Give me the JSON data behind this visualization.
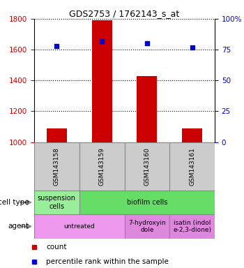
{
  "title": "GDS2753 / 1762143_s_at",
  "samples": [
    "GSM143158",
    "GSM143159",
    "GSM143160",
    "GSM143161"
  ],
  "count_values": [
    1090,
    1790,
    1430,
    1090
  ],
  "percentile_values": [
    78,
    82,
    80,
    77
  ],
  "ylim_left": [
    1000,
    1800
  ],
  "ylim_right": [
    0,
    100
  ],
  "yticks_left": [
    1000,
    1200,
    1400,
    1600,
    1800
  ],
  "yticks_right": [
    0,
    25,
    50,
    75,
    100
  ],
  "bar_color": "#cc0000",
  "dot_color": "#0000cc",
  "bar_width": 0.45,
  "cell_type_row": [
    {
      "label": "suspension\ncells",
      "color": "#99ee99",
      "span": [
        0,
        1
      ]
    },
    {
      "label": "biofilm cells",
      "color": "#66dd66",
      "span": [
        1,
        4
      ]
    }
  ],
  "agent_row": [
    {
      "label": "untreated",
      "color": "#ee99ee",
      "span": [
        0,
        2
      ]
    },
    {
      "label": "7-hydroxyin\ndole",
      "color": "#dd88dd",
      "span": [
        2,
        3
      ]
    },
    {
      "label": "isatin (indol\ne-2,3-dione)",
      "color": "#dd88dd",
      "span": [
        3,
        4
      ]
    }
  ],
  "legend_items": [
    {
      "color": "#cc0000",
      "label": "count"
    },
    {
      "color": "#0000cc",
      "label": "percentile rank within the sample"
    }
  ],
  "background_color": "#ffffff",
  "sample_box_color": "#cccccc",
  "left_axis_color": "#cc0000",
  "right_axis_color": "#0000cc"
}
